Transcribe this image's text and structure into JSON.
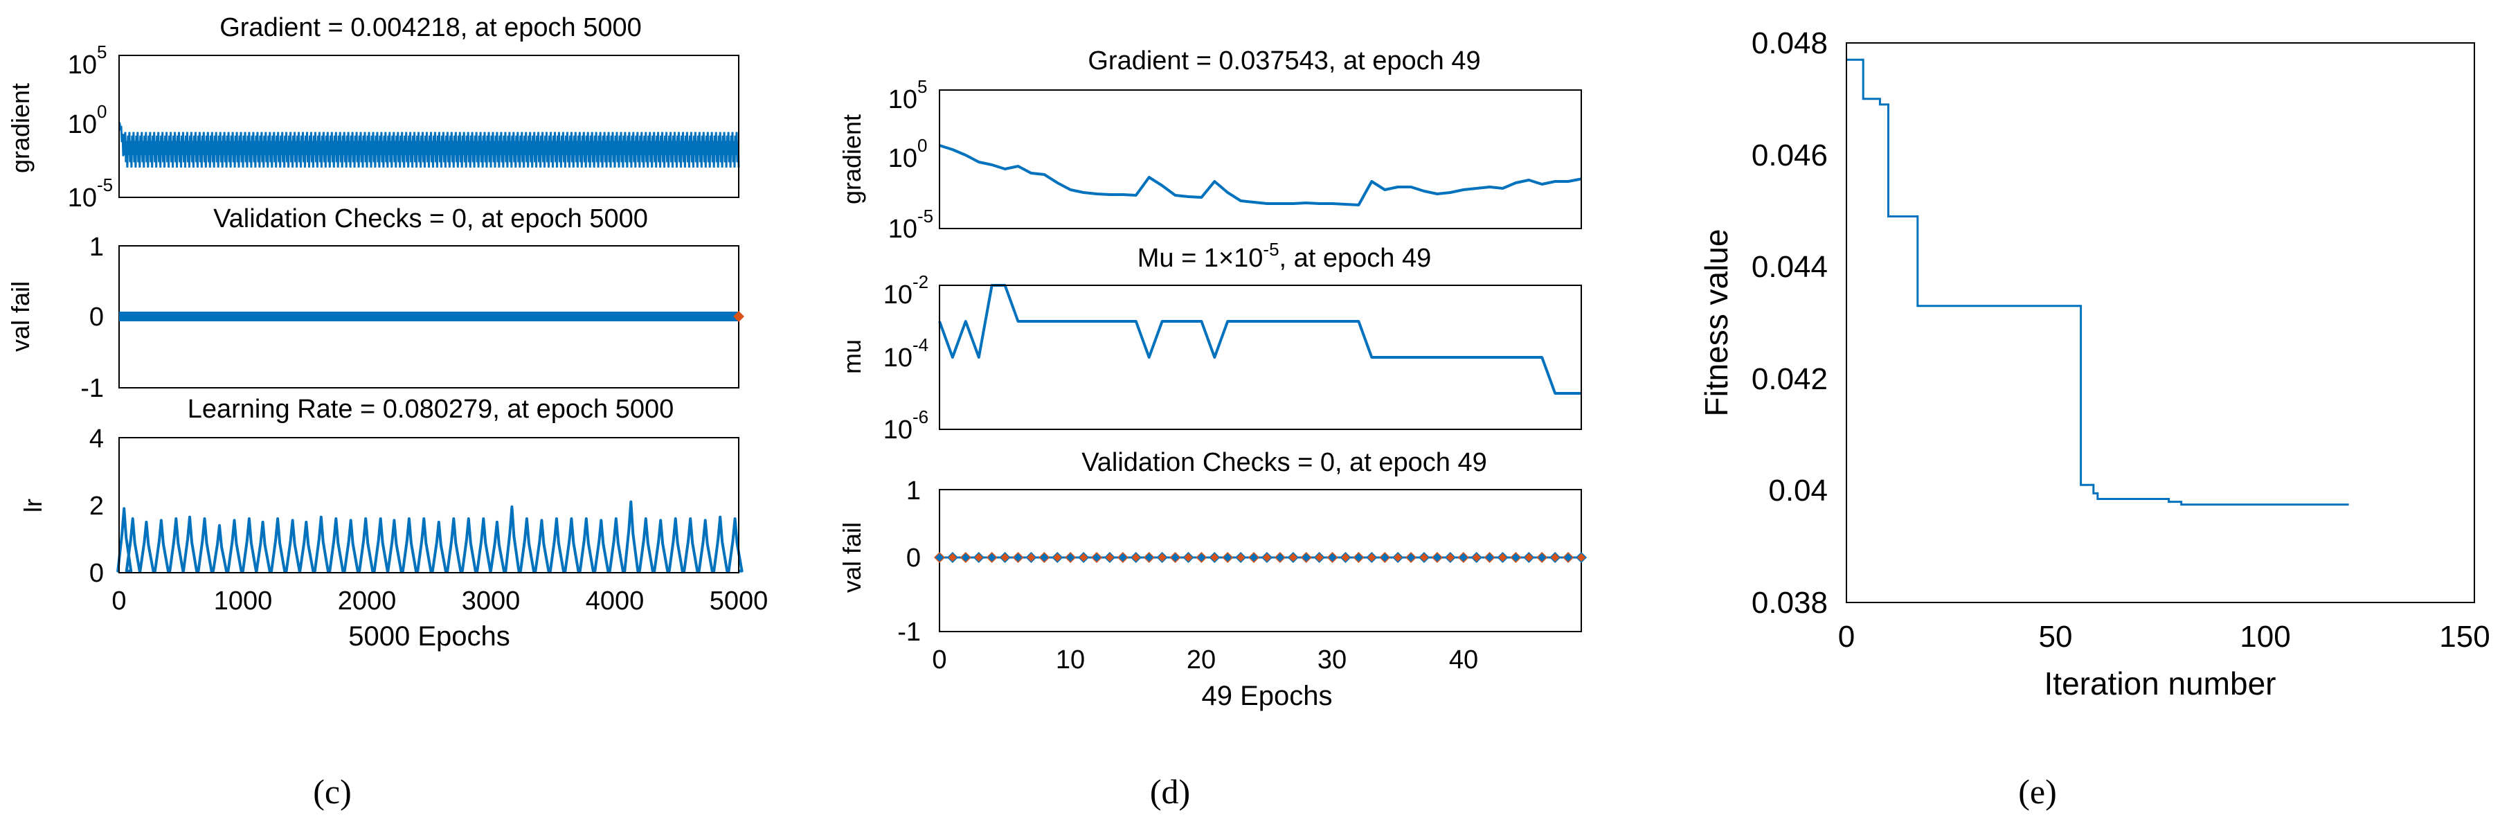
{
  "chart_data": [
    {
      "panel": "c",
      "type": "line",
      "panel_label": "(c)",
      "xlabel": "5000 Epochs",
      "xlim": [
        0,
        5000
      ],
      "xticks": [
        "0",
        "1000",
        "2000",
        "3000",
        "4000",
        "5000"
      ],
      "subplots": [
        {
          "title": "Gradient = 0.004218, at epoch 5000",
          "ylabel": "gradient",
          "yscale": "log",
          "ylim_exp": [
            -5,
            5
          ],
          "yticks": [
            {
              "base": "10",
              "exp": "5"
            },
            {
              "base": "10",
              "exp": "0"
            },
            {
              "base": "10",
              "exp": "-5"
            }
          ],
          "series": {
            "name": "gradient",
            "pattern": "oscillating band",
            "band_log10": [
              -2.9,
              -0.4
            ],
            "start_log10": 0.3,
            "end_value": 0.004218
          }
        },
        {
          "title": "Validation Checks = 0, at epoch 5000",
          "ylabel": "val fail",
          "ylim": [
            -1,
            1
          ],
          "yticks": [
            "1",
            "0",
            "-1"
          ],
          "series": {
            "name": "val fail",
            "constant": 0,
            "markers": "dense diamonds"
          }
        },
        {
          "title": "Learning Rate = 0.080279, at epoch 5000",
          "ylabel": "lr",
          "ylim": [
            0,
            4
          ],
          "yticks": [
            "4",
            "2",
            "0"
          ],
          "series": {
            "name": "lr",
            "baseline": 0.05,
            "peaks_epoch": [
              40,
              110,
              220,
              340,
              460,
              570,
              690,
              810,
              930,
              1050,
              1160,
              1280,
              1400,
              1510,
              1630,
              1750,
              1870,
              1990,
              2110,
              2220,
              2340,
              2460,
              2580,
              2700,
              2820,
              2940,
              3050,
              3170,
              3290,
              3410,
              3530,
              3650,
              3770,
              3890,
              4010,
              4130,
              4250,
              4370,
              4490,
              4610,
              4730,
              4850,
              4970
            ],
            "peaks_value": [
              1.9,
              1.6,
              1.5,
              1.55,
              1.6,
              1.65,
              1.6,
              1.4,
              1.55,
              1.6,
              1.5,
              1.6,
              1.55,
              1.5,
              1.65,
              1.6,
              1.55,
              1.6,
              1.6,
              1.55,
              1.6,
              1.6,
              1.5,
              1.6,
              1.6,
              1.6,
              1.5,
              1.95,
              1.6,
              1.55,
              1.6,
              1.6,
              1.6,
              1.55,
              1.6,
              2.1,
              1.6,
              1.55,
              1.6,
              1.6,
              1.55,
              1.65,
              1.6
            ]
          }
        }
      ]
    },
    {
      "panel": "d",
      "type": "line",
      "panel_label": "(d)",
      "xlabel": "49 Epochs",
      "xlim": [
        0,
        49
      ],
      "xticks": [
        "0",
        "10",
        "20",
        "30",
        "40"
      ],
      "subplots": [
        {
          "title": "Gradient = 0.037543, at epoch 49",
          "ylabel": "gradient",
          "yscale": "log",
          "ylim_exp": [
            -5,
            5
          ],
          "yticks": [
            {
              "base": "10",
              "exp": "5"
            },
            {
              "base": "10",
              "exp": "0"
            },
            {
              "base": "10",
              "exp": "-5"
            }
          ],
          "series": {
            "name": "gradient",
            "x": [
              0,
              1,
              2,
              3,
              4,
              5,
              6,
              7,
              8,
              9,
              10,
              11,
              12,
              13,
              14,
              15,
              16,
              17,
              18,
              19,
              20,
              21,
              22,
              23,
              24,
              25,
              26,
              27,
              28,
              29,
              30,
              31,
              32,
              33,
              34,
              35,
              36,
              37,
              38,
              39,
              40,
              41,
              42,
              43,
              44,
              45,
              46,
              47,
              48,
              49
            ],
            "log10": [
              1.0,
              0.7,
              0.3,
              -0.2,
              -0.4,
              -0.7,
              -0.5,
              -1.0,
              -1.1,
              -1.7,
              -2.2,
              -2.4,
              -2.5,
              -2.55,
              -2.55,
              -2.6,
              -1.3,
              -1.9,
              -2.6,
              -2.7,
              -2.75,
              -1.6,
              -2.4,
              -3.0,
              -3.1,
              -3.2,
              -3.2,
              -3.2,
              -3.15,
              -3.2,
              -3.2,
              -3.25,
              -3.3,
              -1.6,
              -2.2,
              -2.0,
              -2.0,
              -2.3,
              -2.5,
              -2.4,
              -2.2,
              -2.1,
              -2.0,
              -2.1,
              -1.7,
              -1.5,
              -1.8,
              -1.6,
              -1.6,
              -1.42
            ]
          }
        },
        {
          "title": "Mu = 1×10",
          "title_sup": "-5",
          "title_rest": ", at epoch 49",
          "ylabel": "mu",
          "yscale": "log",
          "ylim_exp": [
            -6,
            -2
          ],
          "yticks": [
            {
              "base": "10",
              "exp": "-2"
            },
            {
              "base": "10",
              "exp": "-4"
            },
            {
              "base": "10",
              "exp": "-6"
            }
          ],
          "series": {
            "name": "mu",
            "x": [
              0,
              1,
              2,
              3,
              4,
              5,
              6,
              7,
              8,
              9,
              10,
              11,
              12,
              13,
              14,
              15,
              16,
              17,
              18,
              19,
              20,
              21,
              22,
              23,
              24,
              25,
              26,
              27,
              28,
              29,
              30,
              31,
              32,
              33,
              34,
              35,
              36,
              37,
              38,
              39,
              40,
              41,
              42,
              43,
              44,
              45,
              46,
              47,
              48,
              49
            ],
            "log10": [
              -3,
              -4,
              -3,
              -4,
              -2,
              -2,
              -3,
              -3,
              -3,
              -3,
              -3,
              -3,
              -3,
              -3,
              -3,
              -3,
              -4,
              -3,
              -3,
              -3,
              -3,
              -4,
              -3,
              -3,
              -3,
              -3,
              -3,
              -3,
              -3,
              -3,
              -3,
              -3,
              -3,
              -4,
              -4,
              -4,
              -4,
              -4,
              -4,
              -4,
              -4,
              -4,
              -4,
              -4,
              -4,
              -4,
              -4,
              -5,
              -5,
              -5
            ]
          }
        },
        {
          "title": "Validation Checks = 0, at epoch 49",
          "ylabel": "val fail",
          "ylim": [
            -1,
            1
          ],
          "yticks": [
            "1",
            "0",
            "-1"
          ],
          "series": {
            "name": "val fail",
            "constant": 0,
            "markers": "diamonds at every epoch",
            "marker_colors": [
              "#0072BD",
              "#D95319"
            ]
          }
        }
      ]
    },
    {
      "panel": "e",
      "type": "line",
      "panel_label": "(e)",
      "xlabel": "Iteration number",
      "ylabel": "Fitness value",
      "xlim": [
        0,
        150
      ],
      "ylim": [
        0.038,
        0.048
      ],
      "xticks": [
        "0",
        "50",
        "100",
        "150"
      ],
      "yticks": [
        "0.048",
        "0.046",
        "0.044",
        "0.042",
        "0.04",
        "0.038"
      ],
      "series": {
        "name": "fitness",
        "step": true,
        "x": [
          0,
          3,
          4,
          7,
          8,
          9,
          10,
          11,
          13,
          14,
          16,
          17,
          18,
          55,
          56,
          58,
          59,
          60,
          62,
          70,
          75,
          77,
          80,
          85,
          90,
          100,
          110,
          120
        ],
        "y": [
          0.0477,
          0.0477,
          0.047,
          0.047,
          0.0469,
          0.0469,
          0.0449,
          0.0449,
          0.0449,
          0.0449,
          0.0449,
          0.0433,
          0.0433,
          0.0433,
          0.0401,
          0.0401,
          0.03995,
          0.03985,
          0.03985,
          0.03985,
          0.03985,
          0.0398,
          0.03975,
          0.03975,
          0.03975,
          0.03975,
          0.03975,
          0.03975
        ]
      }
    }
  ]
}
